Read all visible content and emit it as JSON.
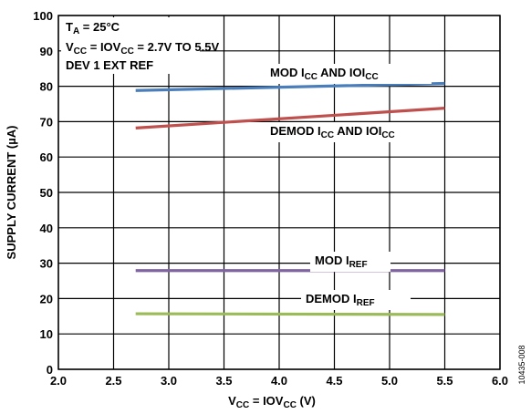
{
  "chart_data": {
    "type": "line",
    "xlabel": {
      "base": "V",
      "sub1": "CC",
      "mid": " = IOV",
      "sub2": "CC",
      "tail": " (V)"
    },
    "ylabel": "SUPPLY CURRENT (µA)",
    "xlim": [
      2.0,
      6.0
    ],
    "ylim": [
      0,
      100
    ],
    "xticks": [
      "2.0",
      "2.5",
      "3.0",
      "3.5",
      "4.0",
      "4.5",
      "5.0",
      "5.5",
      "6.0"
    ],
    "yticks": [
      "0",
      "10",
      "20",
      "30",
      "40",
      "50",
      "60",
      "70",
      "80",
      "90",
      "100"
    ],
    "grid": true,
    "conditions": {
      "line1": {
        "base": "T",
        "sub": "A",
        "tail": " = 25°C"
      },
      "line2": {
        "base": "V",
        "sub1": "CC",
        "mid": " = IOV",
        "sub2": "CC",
        "tail": " = 2.7V TO 5.5V"
      },
      "line3": "DEV 1 EXT REF"
    },
    "series": [
      {
        "name": "MOD ICC AND IOICC",
        "label": {
          "a": "MOD I",
          "s1": "CC",
          "b": " AND IOI",
          "s2": "CC"
        },
        "color": "#4a7ebb",
        "x": [
          2.7,
          5.5
        ],
        "y": [
          78.8,
          80.8
        ]
      },
      {
        "name": "DEMOD ICC AND IOICC",
        "label": {
          "a": "DEMOD I",
          "s1": "CC",
          "b": " AND IOI",
          "s2": "CC"
        },
        "color": "#c0504d",
        "x": [
          2.7,
          5.5
        ],
        "y": [
          68.2,
          73.8
        ]
      },
      {
        "name": "MOD IREF",
        "label": {
          "a": "MOD I",
          "s1": "REF",
          "b": "",
          "s2": ""
        },
        "color": "#8064a2",
        "x": [
          2.7,
          5.5
        ],
        "y": [
          27.9,
          27.9
        ]
      },
      {
        "name": "DEMOD IREF",
        "label": {
          "a": "DEMOD I",
          "s1": "REF",
          "b": "",
          "s2": ""
        },
        "color": "#9bbb59",
        "x": [
          2.7,
          5.5
        ],
        "y": [
          15.7,
          15.5
        ]
      }
    ]
  },
  "figure_id": "10435-008"
}
